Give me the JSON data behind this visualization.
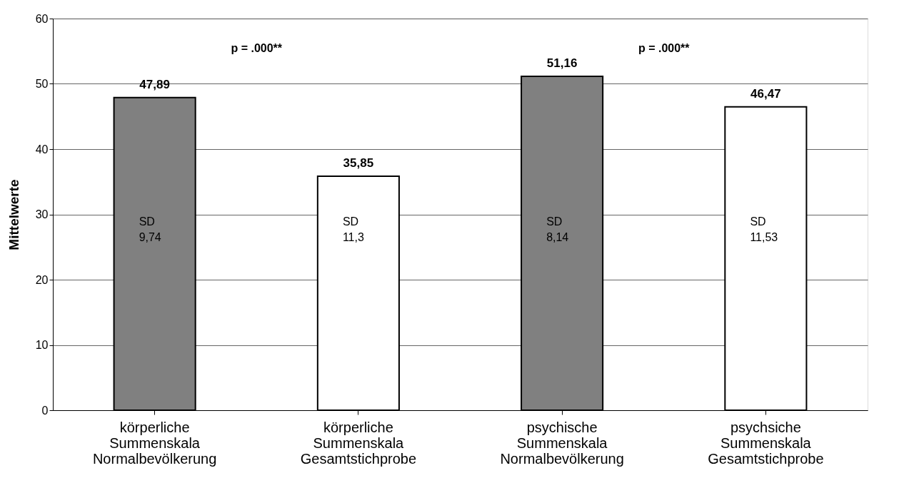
{
  "chart_data": {
    "type": "bar",
    "ylabel": "Mittelwerte",
    "categories": [
      "körperliche Summenskala Normalbevölkerung",
      "körperliche Summenskala Gesamtstichprobe",
      "psychische Summenskala Normalbevölkerung",
      "psychsiche Summenskala Gesamtstichprobe"
    ],
    "values": [
      47.89,
      35.85,
      51.16,
      46.47
    ],
    "colors": [
      "#808080",
      "#ffffff",
      "#808080",
      "#ffffff"
    ],
    "value_labels": [
      "47,89",
      "35,85",
      "51,16",
      "46,47"
    ],
    "ylim": [
      0,
      60
    ],
    "yticks": [
      0,
      10,
      20,
      30,
      40,
      50,
      60
    ],
    "grid": "y",
    "annotations": [
      "SD 9,74",
      "SD 11,3",
      "SD 8,14",
      "SD 11,53",
      "p = .000**",
      "p =  .000**"
    ]
  }
}
